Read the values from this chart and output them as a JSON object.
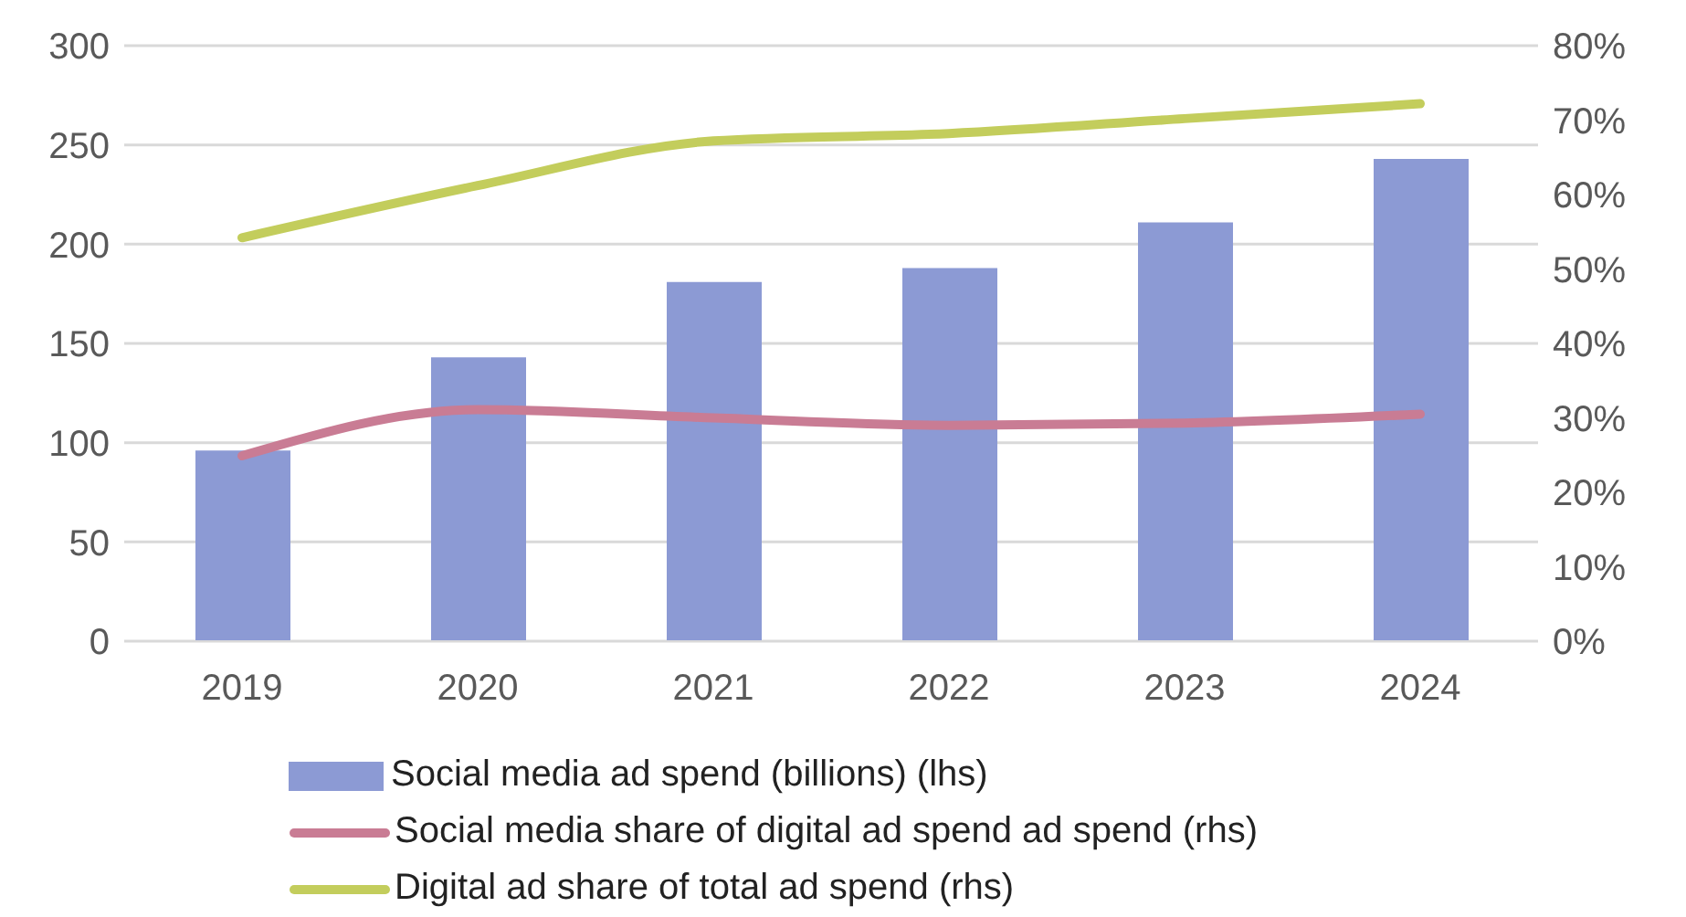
{
  "chart_data": {
    "type": "bar",
    "categories": [
      "2019",
      "2020",
      "2021",
      "2022",
      "2023",
      "2024"
    ],
    "series": [
      {
        "name": "Social media ad spend (billions) (lhs)",
        "color": "#8c9ad4",
        "values": [
          96,
          143,
          181,
          188,
          211,
          243
        ]
      },
      {
        "name": "Social media share of digital ad spend ad spend (rhs)",
        "type": "line",
        "axis": "y2",
        "color": "#c97c94",
        "values": [
          24.9,
          31.1,
          30,
          29,
          29.3,
          30.5
        ]
      },
      {
        "name": "Digital ad share of total ad spend (rhs)",
        "type": "line",
        "axis": "y2",
        "color": "#c3cd5c",
        "values": [
          54.2,
          61.2,
          67.2,
          68.2,
          70.2,
          72.2
        ]
      }
    ],
    "ylim": [
      0,
      300
    ],
    "yticks": [
      0,
      50,
      100,
      150,
      200,
      250,
      300
    ],
    "y2lim": [
      0,
      80
    ],
    "y2ticks": [
      {
        "value": 0,
        "label": "0%"
      },
      {
        "value": 10,
        "label": "10%"
      },
      {
        "value": 20,
        "label": "20%"
      },
      {
        "value": 30,
        "label": "30%"
      },
      {
        "value": 40,
        "label": "40%"
      },
      {
        "value": 50,
        "label": "50%"
      },
      {
        "value": 60,
        "label": "60%"
      },
      {
        "value": 70,
        "label": "70%"
      },
      {
        "value": 80,
        "label": "80%"
      }
    ],
    "grid": "y",
    "legend": "bottom",
    "line_style": "solid",
    "marker": "none"
  }
}
